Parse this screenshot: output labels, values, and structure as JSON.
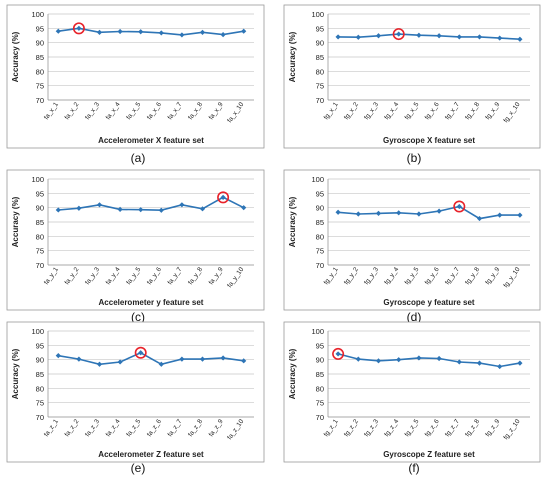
{
  "colors": {
    "line": "#2E75B6",
    "marker": "#2E75B6",
    "highlight": "#E8222A",
    "grid": "#C8C8C8",
    "frame": "#9A9A9A",
    "text": "#222222"
  },
  "chart_data": [
    {
      "type": "line",
      "panel_label": "(a)",
      "title": "",
      "xlabel": "Accelerometer X feature set",
      "ylabel": "Accuracy (%)",
      "ylim": [
        70,
        100
      ],
      "yticks": [
        "70",
        "75",
        "80",
        "85",
        "90",
        "95",
        "100"
      ],
      "grid": "horizontal",
      "categories": [
        "fa_x_1",
        "fa_x_2",
        "fa_x_3",
        "fa_x_4",
        "fa_x_5",
        "fa_x_6",
        "fa_x_7",
        "fa_x_8",
        "fa_x_9",
        "fa_x_10"
      ],
      "values": [
        94.0,
        95.0,
        93.6,
        93.9,
        93.8,
        93.4,
        92.7,
        93.6,
        92.8,
        94.0
      ],
      "highlight_index": 1
    },
    {
      "type": "line",
      "panel_label": "(b)",
      "title": "",
      "xlabel": "Gyroscope X feature set",
      "ylabel": "Accuracy (%)",
      "ylim": [
        70,
        100
      ],
      "yticks": [
        "70",
        "75",
        "80",
        "85",
        "90",
        "95",
        "100"
      ],
      "grid": "horizontal",
      "categories": [
        "fg_x_1",
        "fg_x_2",
        "fg_x_3",
        "fg_x_4",
        "fg_x_5",
        "fg_x_6",
        "fg_x_7",
        "fg_x_8",
        "fg_x_9",
        "fg_x_10"
      ],
      "values": [
        92.0,
        91.9,
        92.4,
        93.0,
        92.6,
        92.4,
        92.0,
        92.0,
        91.6,
        91.2
      ],
      "highlight_index": 3
    },
    {
      "type": "line",
      "panel_label": "(c)",
      "title": "",
      "xlabel": "Accelerometer y feature set",
      "ylabel": "Accuracy (%)",
      "ylim": [
        70,
        100
      ],
      "yticks": [
        "70",
        "75",
        "80",
        "85",
        "90",
        "95",
        "100"
      ],
      "grid": "horizontal",
      "categories": [
        "fa_y_1",
        "fa_y_2",
        "fa_y_3",
        "fa_y_4",
        "fa_y_5",
        "fa_y_6",
        "fa_y_7",
        "fa_y_8",
        "fa_y_9",
        "fa_y_10"
      ],
      "values": [
        89.2,
        89.8,
        91.0,
        89.4,
        89.3,
        89.1,
        91.0,
        89.6,
        93.6,
        90.0
      ],
      "highlight_index": 8
    },
    {
      "type": "line",
      "panel_label": "(d)",
      "title": "",
      "xlabel": "Gyroscope y feature set",
      "ylabel": "Accuracy (%)",
      "ylim": [
        70,
        100
      ],
      "yticks": [
        "70",
        "75",
        "80",
        "85",
        "90",
        "95",
        "100"
      ],
      "grid": "horizontal",
      "categories": [
        "fg_y_1",
        "fg_y_2",
        "fg_y_3",
        "fg_y_4",
        "fg_y_5",
        "fg_y_6",
        "fg_y_7",
        "fg_y_8",
        "fg_y_9",
        "fg_y_10"
      ],
      "values": [
        88.4,
        87.8,
        88.0,
        88.2,
        87.8,
        88.8,
        90.4,
        86.2,
        87.4,
        87.4
      ],
      "highlight_index": 6
    },
    {
      "type": "line",
      "panel_label": "(e)",
      "title": "",
      "xlabel": "Accelerometer Z feature set",
      "ylabel": "Accuracy (%)",
      "ylim": [
        70,
        100
      ],
      "yticks": [
        "70",
        "75",
        "80",
        "85",
        "90",
        "95",
        "100"
      ],
      "grid": "horizontal",
      "categories": [
        "fa_z_1",
        "fa_z_2",
        "fa_z_3",
        "fa_z_4",
        "fa_z_5",
        "fa_z_6",
        "fa_z_7",
        "fa_z_8",
        "fa_z_9",
        "fa_z_10"
      ],
      "values": [
        91.4,
        90.2,
        88.4,
        89.2,
        92.4,
        88.4,
        90.2,
        90.2,
        90.6,
        89.6
      ],
      "highlight_index": 4
    },
    {
      "type": "line",
      "panel_label": "(f)",
      "title": "",
      "xlabel": "Gyroscope Z feature set",
      "ylabel": "Accuracy (%)",
      "ylim": [
        70,
        100
      ],
      "yticks": [
        "70",
        "75",
        "80",
        "85",
        "90",
        "95",
        "100"
      ],
      "grid": "horizontal",
      "categories": [
        "fg_z_1",
        "fg_z_2",
        "fg_z_3",
        "fg_z_4",
        "fg_z_5",
        "fg_z_6",
        "fg_z_7",
        "fg_z_8",
        "fg_z_9",
        "fg_z_10"
      ],
      "values": [
        92.0,
        90.2,
        89.6,
        90.0,
        90.6,
        90.4,
        89.2,
        88.8,
        87.6,
        88.8
      ],
      "highlight_index": 0
    }
  ]
}
